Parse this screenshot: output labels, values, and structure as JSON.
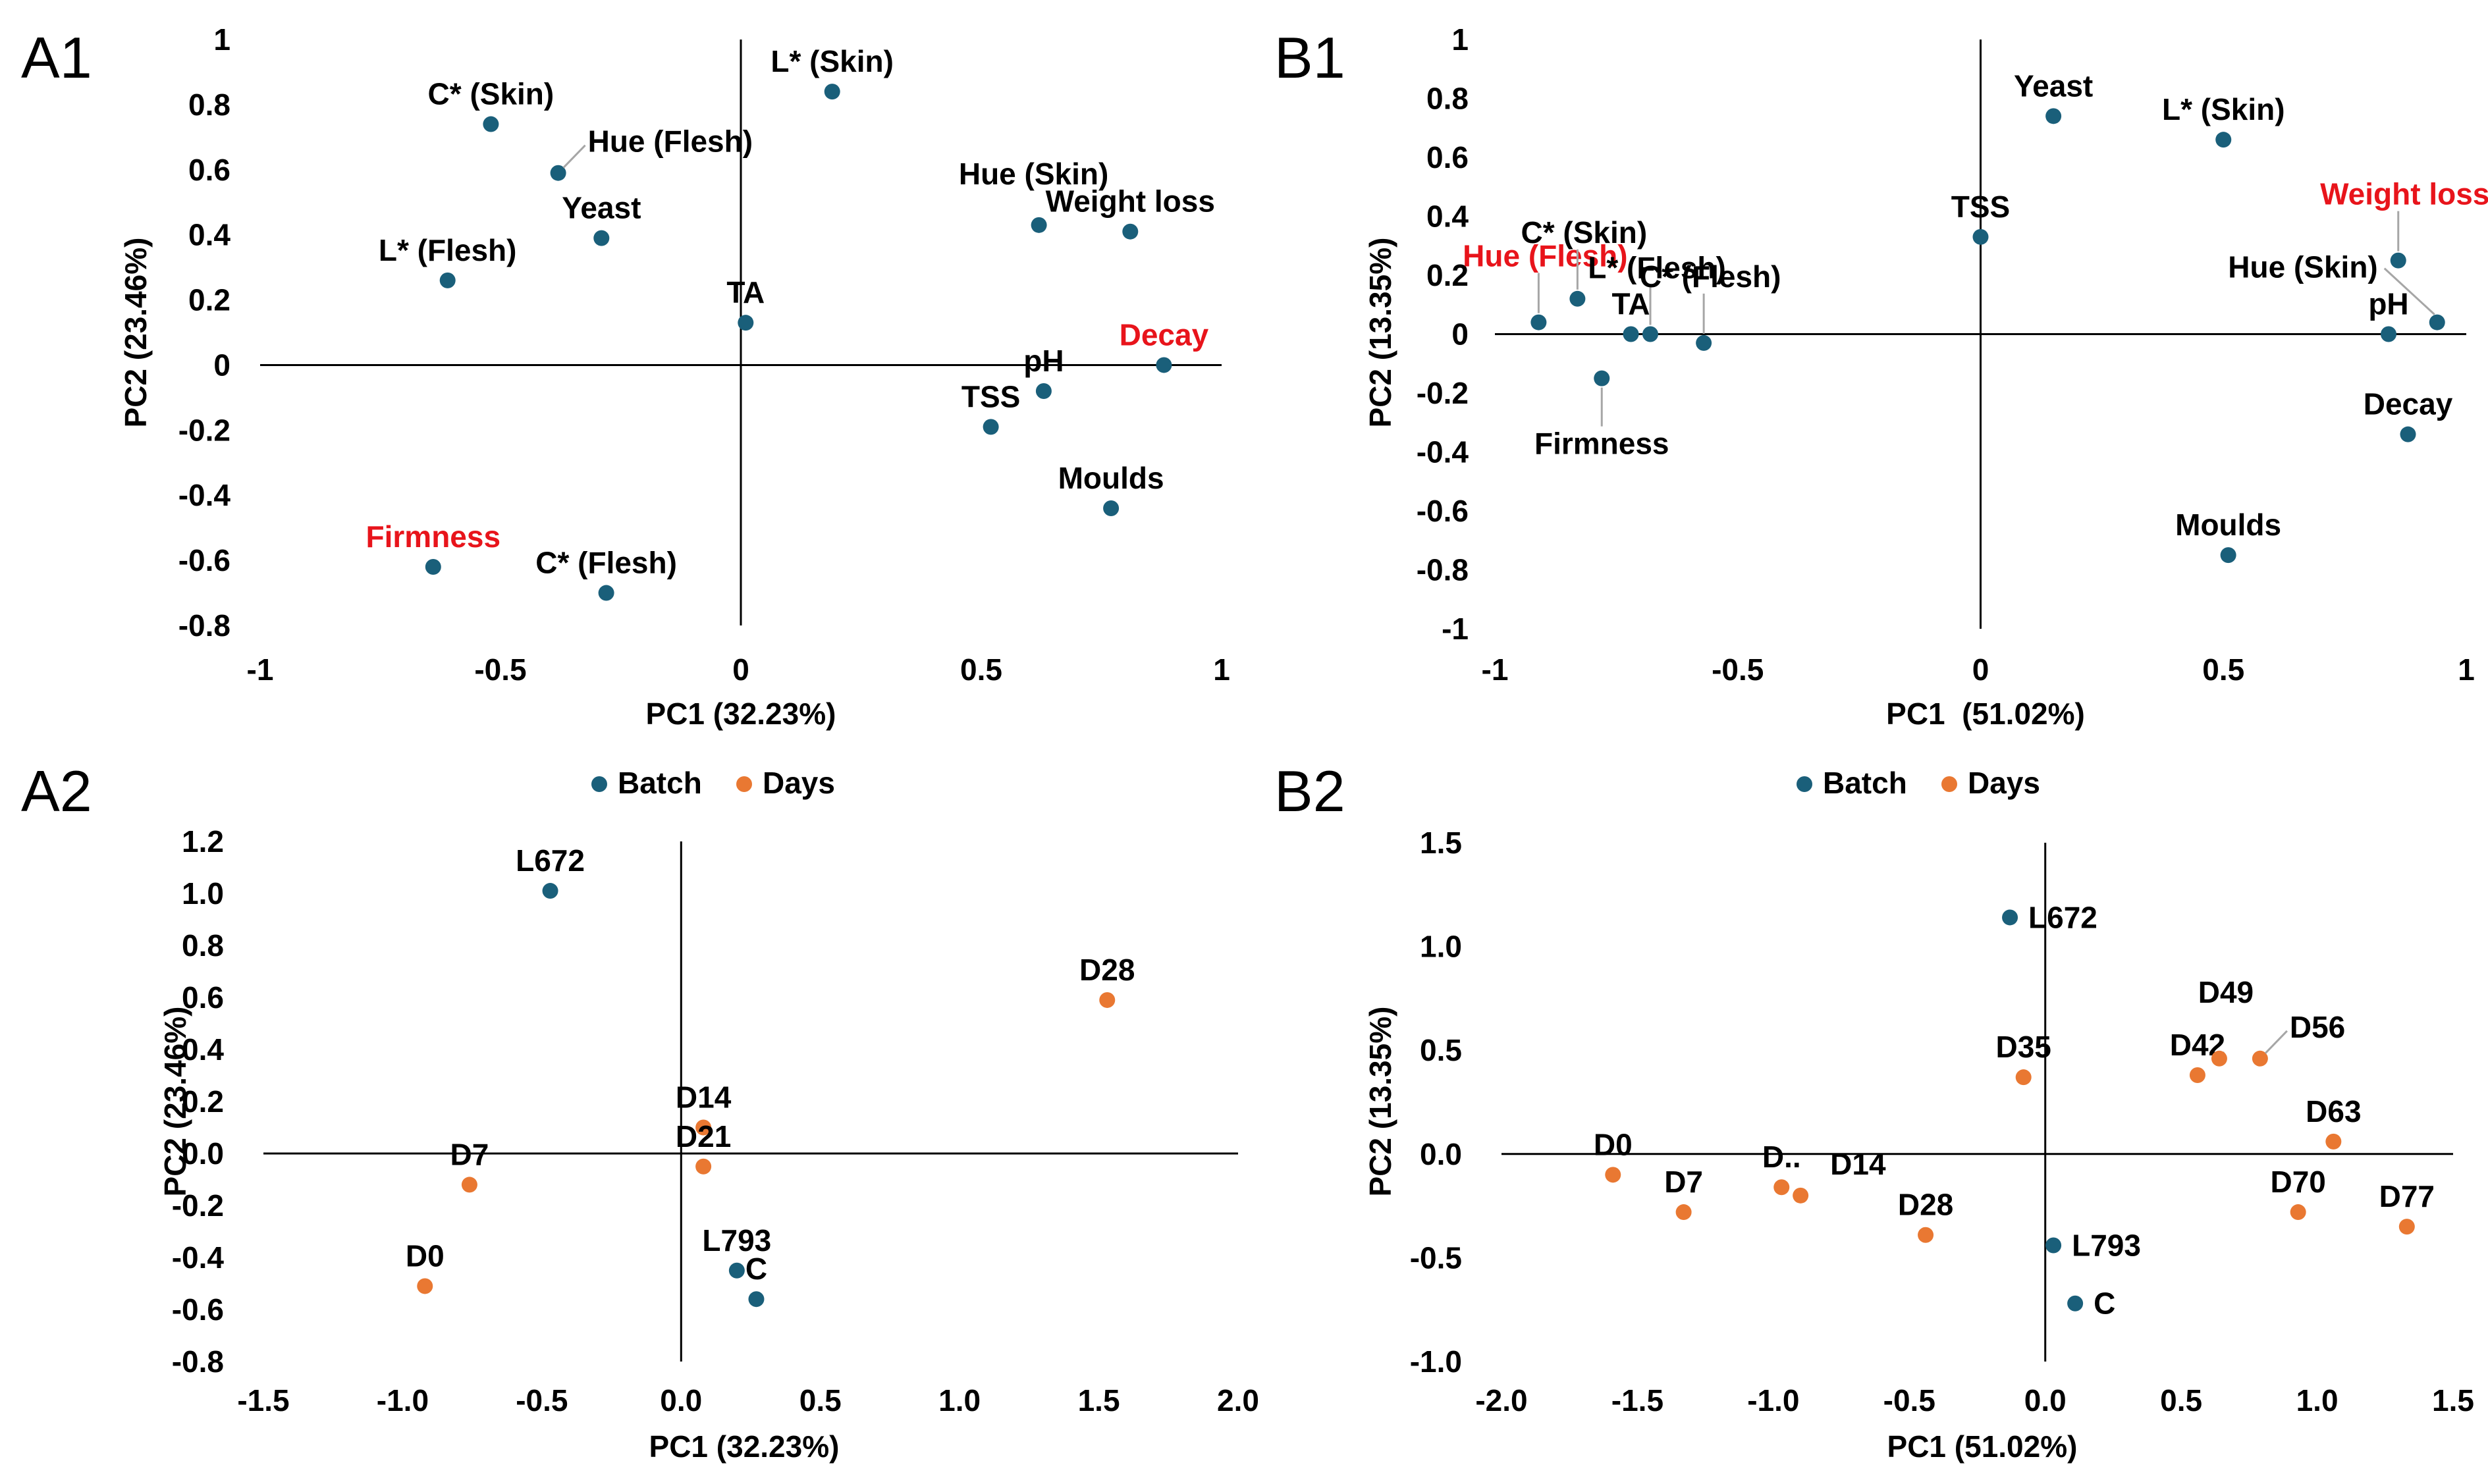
{
  "colors": {
    "batch": "#1a5f7a",
    "days": "#e97832",
    "highlight": "#e8141b",
    "text": "#000000",
    "axis": "#000000",
    "leader": "#a6a6a6"
  },
  "legend": {
    "batch_label": "Batch",
    "days_label": "Days"
  },
  "chart_data": [
    {
      "id": "A1",
      "panel_label": "A1",
      "type": "scatter",
      "title": "",
      "xlabel": "PC1 (32.23%)",
      "ylabel": "PC2 (23.46%)",
      "xlim": [
        -1,
        1
      ],
      "ylim": [
        -0.8,
        1
      ],
      "xticks": [
        -1,
        -0.5,
        0,
        0.5,
        1
      ],
      "xtick_labels": [
        "-1",
        "-0.5",
        "0",
        "0.5",
        "1"
      ],
      "yticks": [
        1,
        0.8,
        0.6,
        0.4,
        0.2,
        0,
        -0.2,
        -0.4,
        -0.6,
        -0.8
      ],
      "ytick_labels": [
        "1",
        "0.8",
        "0.6",
        "0.4",
        "0.2",
        "0",
        "-0.2",
        "-0.4",
        "-0.6",
        "-0.8"
      ],
      "legend": false,
      "points": [
        {
          "label": "C* (Skin)",
          "x": -0.52,
          "y": 0.74,
          "group": "batch",
          "highlight": false,
          "anchor": "above"
        },
        {
          "label": "Hue (Flesh)",
          "x": -0.38,
          "y": 0.59,
          "group": "batch",
          "highlight": false,
          "anchor": "above-right",
          "leader": true
        },
        {
          "label": "L* (Skin)",
          "x": 0.19,
          "y": 0.84,
          "group": "batch",
          "highlight": false,
          "anchor": "above"
        },
        {
          "label": "Yeast",
          "x": -0.29,
          "y": 0.39,
          "group": "batch",
          "highlight": false,
          "anchor": "above"
        },
        {
          "label": "L* (Flesh)",
          "x": -0.61,
          "y": 0.26,
          "group": "batch",
          "highlight": false,
          "anchor": "above"
        },
        {
          "label": "Hue (Skin)",
          "x": 0.62,
          "y": 0.43,
          "group": "batch",
          "highlight": false,
          "anchor": "above-left"
        },
        {
          "label": "Weight loss",
          "x": 0.81,
          "y": 0.41,
          "group": "batch",
          "highlight": false,
          "anchor": "above"
        },
        {
          "label": "TA",
          "x": 0.01,
          "y": 0.13,
          "group": "batch",
          "highlight": false,
          "anchor": "above"
        },
        {
          "label": "Decay",
          "x": 0.88,
          "y": 0.0,
          "group": "batch",
          "highlight": true,
          "anchor": "above"
        },
        {
          "label": "pH",
          "x": 0.63,
          "y": -0.08,
          "group": "batch",
          "highlight": false,
          "anchor": "above"
        },
        {
          "label": "TSS",
          "x": 0.52,
          "y": -0.19,
          "group": "batch",
          "highlight": false,
          "anchor": "above"
        },
        {
          "label": "Moulds",
          "x": 0.77,
          "y": -0.44,
          "group": "batch",
          "highlight": false,
          "anchor": "above"
        },
        {
          "label": "Firmness",
          "x": -0.64,
          "y": -0.62,
          "group": "batch",
          "highlight": true,
          "anchor": "above"
        },
        {
          "label": "C* (Flesh)",
          "x": -0.28,
          "y": -0.7,
          "group": "batch",
          "highlight": false,
          "anchor": "above"
        }
      ]
    },
    {
      "id": "B1",
      "panel_label": "B1",
      "type": "scatter",
      "title": "",
      "xlabel": "PC1  (51.02%)",
      "ylabel": "PC2 (13.35%)",
      "xlim": [
        -1,
        1
      ],
      "ylim": [
        -1,
        1
      ],
      "xticks": [
        -1,
        -0.5,
        0,
        0.5,
        1
      ],
      "xtick_labels": [
        "-1",
        "-0.5",
        "0",
        "0.5",
        "1"
      ],
      "yticks": [
        1,
        0.8,
        0.6,
        0.4,
        0.2,
        0,
        -0.2,
        -0.4,
        -0.6,
        -0.8,
        -1
      ],
      "ytick_labels": [
        "1",
        "0.8",
        "0.6",
        "0.4",
        "0.2",
        "0",
        "-0.2",
        "-0.4",
        "-0.6",
        "-0.8",
        "-1"
      ],
      "legend": false,
      "points": [
        {
          "label": "Yeast",
          "x": 0.15,
          "y": 0.74,
          "group": "batch",
          "highlight": false,
          "anchor": "above"
        },
        {
          "label": "L* (Skin)",
          "x": 0.5,
          "y": 0.66,
          "group": "batch",
          "highlight": false,
          "anchor": "above"
        },
        {
          "label": "TSS",
          "x": 0.0,
          "y": 0.33,
          "group": "batch",
          "highlight": false,
          "anchor": "above"
        },
        {
          "label": "Hue (Flesh)",
          "x": -0.91,
          "y": 0.04,
          "group": "batch",
          "highlight": true,
          "anchor": "above-far",
          "leader": true
        },
        {
          "label": "C* (Skin)",
          "x": -0.83,
          "y": 0.12,
          "group": "batch",
          "highlight": false,
          "anchor": "above-far",
          "leader": true
        },
        {
          "label": "TA",
          "x": -0.72,
          "y": 0.0,
          "group": "batch",
          "highlight": false,
          "anchor": "above"
        },
        {
          "label": "L* (Flesh)",
          "x": -0.68,
          "y": 0.0,
          "group": "batch",
          "highlight": false,
          "anchor": "above-far",
          "leader": true
        },
        {
          "label": "C* (Flesh)",
          "x": -0.57,
          "y": -0.03,
          "group": "batch",
          "highlight": false,
          "anchor": "above-far",
          "leader": true
        },
        {
          "label": "Firmness",
          "x": -0.78,
          "y": -0.15,
          "group": "batch",
          "highlight": false,
          "anchor": "below",
          "leader": true
        },
        {
          "label": "Weight loss",
          "x": 0.86,
          "y": 0.25,
          "group": "batch",
          "highlight": true,
          "anchor": "above-far",
          "leader": true
        },
        {
          "label": "Hue (Skin)",
          "x": 0.94,
          "y": 0.04,
          "group": "batch",
          "highlight": false,
          "anchor": "left-far",
          "leader": true
        },
        {
          "label": "pH",
          "x": 0.84,
          "y": 0.0,
          "group": "batch",
          "highlight": false,
          "anchor": "above"
        },
        {
          "label": "Decay",
          "x": 0.88,
          "y": -0.34,
          "group": "batch",
          "highlight": false,
          "anchor": "above"
        },
        {
          "label": "Moulds",
          "x": 0.51,
          "y": -0.75,
          "group": "batch",
          "highlight": false,
          "anchor": "above"
        }
      ]
    },
    {
      "id": "A2",
      "panel_label": "A2",
      "type": "scatter",
      "title": "",
      "xlabel": "PC1 (32.23%)",
      "ylabel": "PC2 (23.46%)",
      "xlim": [
        -1.5,
        2.0
      ],
      "ylim": [
        -0.8,
        1.2
      ],
      "xticks": [
        -1.5,
        -1.0,
        -0.5,
        0.0,
        0.5,
        1.0,
        1.5,
        2.0
      ],
      "xtick_labels": [
        "-1.5",
        "-1.0",
        "-0.5",
        "0.0",
        "0.5",
        "1.0",
        "1.5",
        "2.0"
      ],
      "yticks": [
        1.2,
        1.0,
        0.8,
        0.6,
        0.4,
        0.2,
        0.0,
        -0.2,
        -0.4,
        -0.6,
        -0.8
      ],
      "ytick_labels": [
        "1.2",
        "1.0",
        "0.8",
        "0.6",
        "0.4",
        "0.2",
        "0.0",
        "-0.2",
        "-0.4",
        "-0.6",
        "-0.8"
      ],
      "legend": true,
      "points": [
        {
          "label": "L672",
          "x": -0.47,
          "y": 1.01,
          "group": "batch",
          "highlight": false,
          "anchor": "above"
        },
        {
          "label": "L793",
          "x": 0.2,
          "y": -0.45,
          "group": "batch",
          "highlight": false,
          "anchor": "above"
        },
        {
          "label": "C",
          "x": 0.27,
          "y": -0.56,
          "group": "batch",
          "highlight": false,
          "anchor": "above"
        },
        {
          "label": "D28",
          "x": 1.53,
          "y": 0.59,
          "group": "days",
          "highlight": false,
          "anchor": "above"
        },
        {
          "label": "D14",
          "x": 0.08,
          "y": 0.1,
          "group": "days",
          "highlight": false,
          "anchor": "above"
        },
        {
          "label": "D21",
          "x": 0.08,
          "y": -0.05,
          "group": "days",
          "highlight": false,
          "anchor": "above"
        },
        {
          "label": "D7",
          "x": -0.76,
          "y": -0.12,
          "group": "days",
          "highlight": false,
          "anchor": "above"
        },
        {
          "label": "D0",
          "x": -0.92,
          "y": -0.51,
          "group": "days",
          "highlight": false,
          "anchor": "above"
        }
      ]
    },
    {
      "id": "B2",
      "panel_label": "B2",
      "type": "scatter",
      "title": "",
      "xlabel": "PC1 (51.02%)",
      "ylabel": "PC2 (13.35%)",
      "xlim": [
        -2.0,
        1.5
      ],
      "ylim": [
        -1.0,
        1.5
      ],
      "xticks": [
        -2.0,
        -1.5,
        -1.0,
        -0.5,
        0.0,
        0.5,
        1.0,
        1.5
      ],
      "xtick_labels": [
        "-2.0",
        "-1.5",
        "-1.0",
        "-0.5",
        "0.0",
        "0.5",
        "1.0",
        "1.5"
      ],
      "yticks": [
        1.5,
        1.0,
        0.5,
        0.0,
        -0.5,
        -1.0
      ],
      "ytick_labels": [
        "1.5",
        "1.0",
        "0.5",
        "0.0",
        "-0.5",
        "-1.0"
      ],
      "legend": true,
      "points": [
        {
          "label": "L672",
          "x": -0.13,
          "y": 1.14,
          "group": "batch",
          "highlight": false,
          "anchor": "right"
        },
        {
          "label": "L793",
          "x": 0.03,
          "y": -0.44,
          "group": "batch",
          "highlight": false,
          "anchor": "right"
        },
        {
          "label": "C",
          "x": 0.11,
          "y": -0.72,
          "group": "batch",
          "highlight": false,
          "anchor": "right"
        },
        {
          "label": "D0",
          "x": -1.59,
          "y": -0.1,
          "group": "days",
          "highlight": false,
          "anchor": "above"
        },
        {
          "label": "D7",
          "x": -1.33,
          "y": -0.28,
          "group": "days",
          "highlight": false,
          "anchor": "above"
        },
        {
          "label": "D..",
          "x": -0.97,
          "y": -0.16,
          "group": "days",
          "highlight": false,
          "anchor": "above"
        },
        {
          "label": "D14",
          "x": -0.9,
          "y": -0.2,
          "group": "days",
          "highlight": false,
          "anchor": "above-right"
        },
        {
          "label": "D28",
          "x": -0.44,
          "y": -0.39,
          "group": "days",
          "highlight": false,
          "anchor": "above"
        },
        {
          "label": "D35",
          "x": -0.08,
          "y": 0.37,
          "group": "days",
          "highlight": false,
          "anchor": "above"
        },
        {
          "label": "D42",
          "x": 0.56,
          "y": 0.38,
          "group": "days",
          "highlight": false,
          "anchor": "above"
        },
        {
          "label": "D49",
          "x": 0.64,
          "y": 0.46,
          "group": "days",
          "highlight": false,
          "anchor": "above-far"
        },
        {
          "label": "D56",
          "x": 0.79,
          "y": 0.46,
          "group": "days",
          "highlight": false,
          "anchor": "above-right",
          "leader": true
        },
        {
          "label": "D63",
          "x": 1.06,
          "y": 0.06,
          "group": "days",
          "highlight": false,
          "anchor": "above"
        },
        {
          "label": "D70",
          "x": 0.93,
          "y": -0.28,
          "group": "days",
          "highlight": false,
          "anchor": "above"
        },
        {
          "label": "D77",
          "x": 1.33,
          "y": -0.35,
          "group": "days",
          "highlight": false,
          "anchor": "above"
        }
      ]
    }
  ]
}
